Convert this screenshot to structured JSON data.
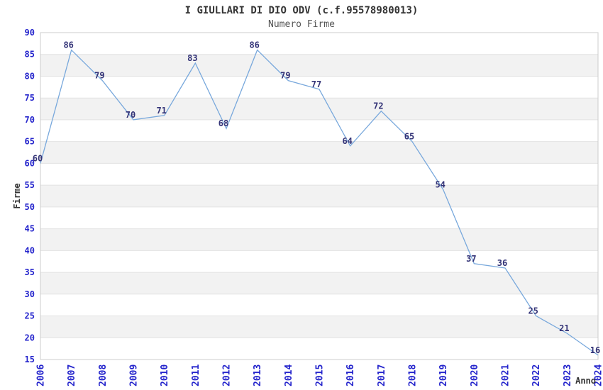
{
  "header": {
    "title": "I GIULLARI DI DIO ODV (c.f.95578980013)",
    "subtitle": "Numero Firme"
  },
  "chart_data": {
    "type": "line",
    "title": "I GIULLARI DI DIO ODV (c.f.95578980013)",
    "subtitle": "Numero Firme",
    "x": [
      2006,
      2007,
      2008,
      2009,
      2010,
      2011,
      2012,
      2013,
      2014,
      2015,
      2016,
      2017,
      2018,
      2019,
      2020,
      2021,
      2022,
      2023,
      2024
    ],
    "values": [
      60,
      86,
      79,
      70,
      71,
      83,
      68,
      86,
      79,
      77,
      64,
      72,
      65,
      54,
      37,
      36,
      25,
      21,
      16
    ],
    "xlabel": "Anno",
    "ylabel": "Firme",
    "ylim": [
      15,
      90
    ],
    "ytick_step": 5,
    "grid": true,
    "band_fill": true,
    "legend": "none",
    "colors": {
      "line": "#78a8dc",
      "tick_label": "#2424cc",
      "data_label": "#333377",
      "band": "#f2f2f2",
      "gridline": "#e2e2e2",
      "border": "#cccccc",
      "text": "#333333"
    }
  }
}
